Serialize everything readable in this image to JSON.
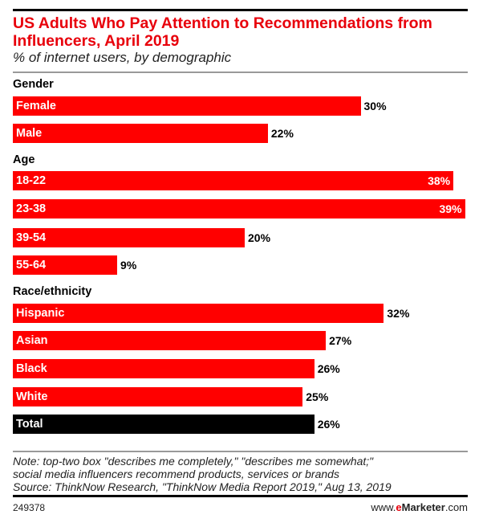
{
  "chart_data": {
    "type": "bar",
    "orientation": "horizontal",
    "title": "US Adults Who Pay Attention to Recommendations from Influencers, April 2019",
    "subtitle": "% of internet users, by demographic",
    "groups": [
      {
        "name": "Gender",
        "items": [
          {
            "label": "Female",
            "value": 30,
            "text": "30%"
          },
          {
            "label": "Male",
            "value": 22,
            "text": "22%"
          }
        ]
      },
      {
        "name": "Age",
        "items": [
          {
            "label": "18-22",
            "value": 38,
            "text": "38%"
          },
          {
            "label": "23-38",
            "value": 39,
            "text": "39%"
          },
          {
            "label": "39-54",
            "value": 20,
            "text": "20%"
          },
          {
            "label": "55-64",
            "value": 9,
            "text": "9%"
          }
        ]
      },
      {
        "name": "Race/ethnicity",
        "items": [
          {
            "label": "Hispanic",
            "value": 32,
            "text": "32%"
          },
          {
            "label": "Asian",
            "value": 27,
            "text": "27%"
          },
          {
            "label": "Black",
            "value": 26,
            "text": "26%"
          },
          {
            "label": "White",
            "value": 25,
            "text": "25%"
          },
          {
            "label": "Total",
            "value": 26,
            "text": "26%",
            "total": true
          }
        ]
      }
    ],
    "colors": {
      "bar": "#ff0000",
      "total": "#000000",
      "title": "#e8000b"
    },
    "xlim": [
      0,
      39
    ]
  },
  "note": [
    "Note: top-two box \"describes me completely,\" \"describes me somewhat;\"",
    "social media influencers recommend products, services or brands",
    "Source: ThinkNow Research, \"ThinkNow Media Report 2019,\" Aug 13, 2019"
  ],
  "footer": {
    "id": "249378",
    "brand_pre": "www.",
    "brand_e": "e",
    "brand_main": "Marketer",
    ".com": ".com"
  }
}
